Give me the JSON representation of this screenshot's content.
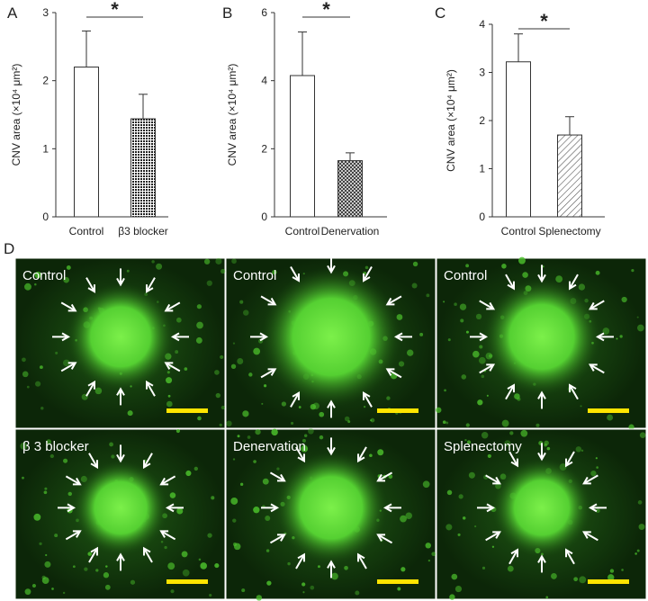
{
  "chart_data": [
    {
      "type": "bar",
      "panel": "A",
      "ylabel": "CNV area (×10⁴ μm²)",
      "categories": [
        "Control",
        "β3 blocker"
      ],
      "values": [
        2.2,
        1.44
      ],
      "errors": [
        0.53,
        0.36
      ],
      "fills": [
        "#ffffff",
        "url(#dots)"
      ],
      "ylim": [
        0,
        3
      ],
      "yticks": [
        0,
        1,
        2,
        3
      ],
      "significance": "*"
    },
    {
      "type": "bar",
      "panel": "B",
      "ylabel": "CNV area (×10⁴ μm²)",
      "categories": [
        "Control",
        "Denervation"
      ],
      "values": [
        4.15,
        1.65
      ],
      "errors": [
        1.28,
        0.23
      ],
      "fills": [
        "#ffffff",
        "url(#cross)"
      ],
      "ylim": [
        0,
        6
      ],
      "yticks": [
        0,
        2,
        4,
        6
      ],
      "significance": "*"
    },
    {
      "type": "bar",
      "panel": "C",
      "ylabel": "CNV area (×10⁴ μm²)",
      "categories": [
        "Control",
        "Splenectomy"
      ],
      "values": [
        3.22,
        1.7
      ],
      "errors": [
        0.58,
        0.38
      ],
      "fills": [
        "#ffffff",
        "url(#hatch)"
      ],
      "ylim": [
        0,
        4
      ],
      "yticks": [
        0,
        1,
        2,
        3,
        4
      ],
      "significance": "*"
    }
  ],
  "images": {
    "panel": "D",
    "labels": [
      "Control",
      "Control",
      "Control",
      "β 3 blocker",
      "Denervation",
      "Splenectomy"
    ]
  }
}
